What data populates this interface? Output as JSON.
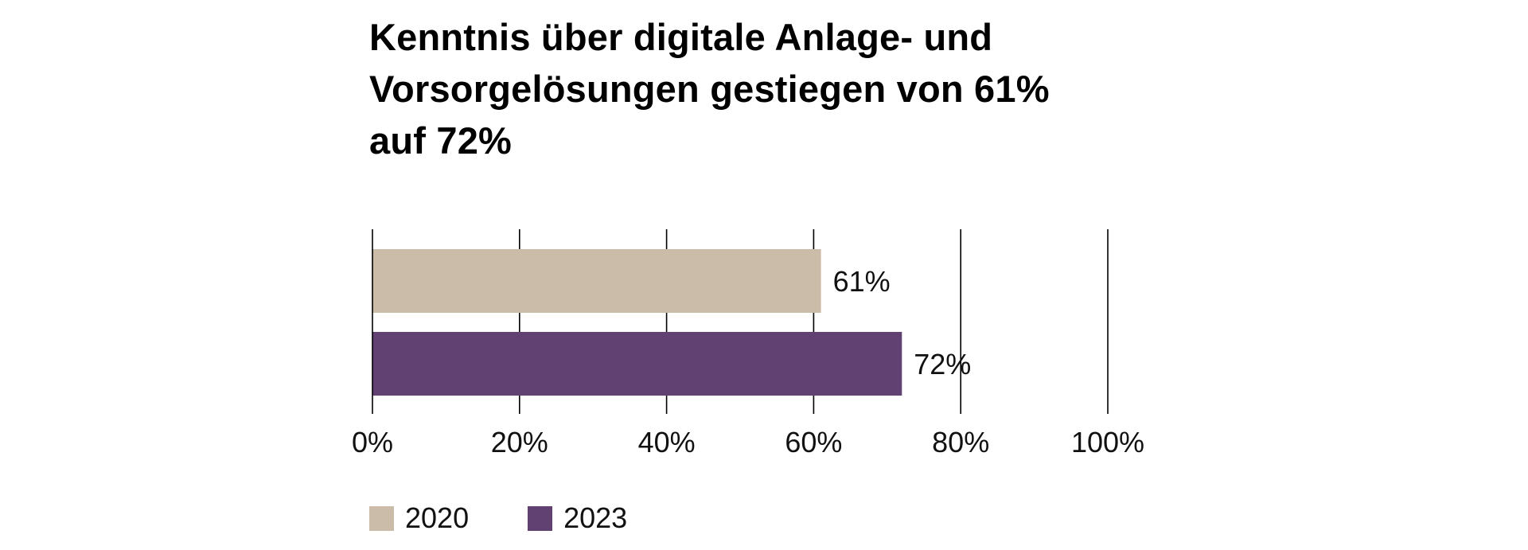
{
  "chart_data": {
    "type": "bar",
    "orientation": "horizontal",
    "title": "Kenntnis über digitale Anlage- und Vorsorgelösungen gestiegen von 61% auf 72%",
    "title_lines": [
      "Kenntnis über digitale Anlage- und",
      "Vorsorgelösungen gestiegen von 61%",
      "auf 72%"
    ],
    "series": [
      {
        "name": "2020",
        "value": 61,
        "label": "61%",
        "color": "#cbbcaa"
      },
      {
        "name": "2023",
        "value": 72,
        "label": "72%",
        "color": "#614172"
      }
    ],
    "xlim": [
      0,
      100
    ],
    "xticks": [
      0,
      20,
      40,
      60,
      80,
      100
    ],
    "xtick_labels": [
      "0%",
      "20%",
      "40%",
      "60%",
      "80%",
      "100%"
    ],
    "grid": true,
    "legend_position": "bottom-left"
  }
}
